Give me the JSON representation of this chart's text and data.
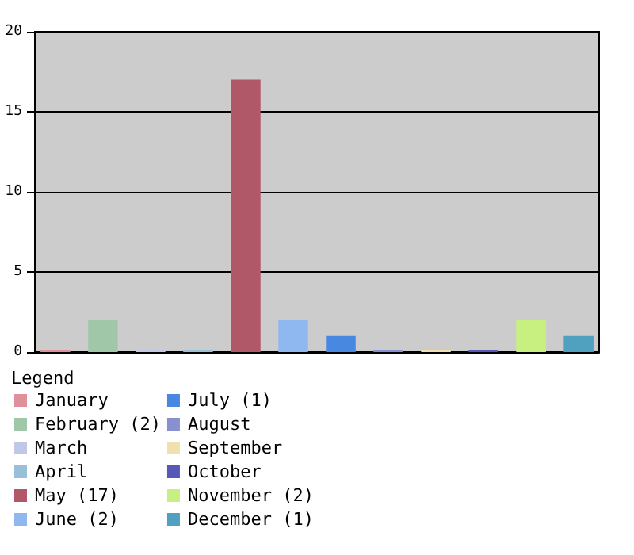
{
  "chart_data": {
    "type": "bar",
    "legend_title": "Legend",
    "categories": [
      null
    ],
    "series": [
      {
        "name": "January",
        "color": "#e0909a",
        "values": [
          0
        ]
      },
      {
        "name": "February (2)",
        "color": "#a0c8a8",
        "values": [
          2
        ]
      },
      {
        "name": "March",
        "color": "#c0c8e8",
        "values": [
          0
        ]
      },
      {
        "name": "April",
        "color": "#98c0d8",
        "values": [
          0
        ]
      },
      {
        "name": "May (17)",
        "color": "#b05868",
        "values": [
          17
        ]
      },
      {
        "name": "June (2)",
        "color": "#90b8f0",
        "values": [
          2
        ]
      },
      {
        "name": "July (1)",
        "color": "#4888e0",
        "values": [
          1
        ]
      },
      {
        "name": "August",
        "color": "#8890d0",
        "values": [
          0
        ]
      },
      {
        "name": "September",
        "color": "#f0e0b0",
        "values": [
          0
        ]
      },
      {
        "name": "October",
        "color": "#5858b8",
        "values": [
          0
        ]
      },
      {
        "name": "November (2)",
        "color": "#c8f080",
        "values": [
          2
        ]
      },
      {
        "name": "December (1)",
        "color": "#50a0c0",
        "values": [
          1
        ]
      }
    ],
    "ylim": [
      0,
      20
    ],
    "yticks": [
      0,
      5,
      10,
      15,
      20
    ],
    "grid": "y",
    "legend": "bottom",
    "tick_labels": "y"
  }
}
